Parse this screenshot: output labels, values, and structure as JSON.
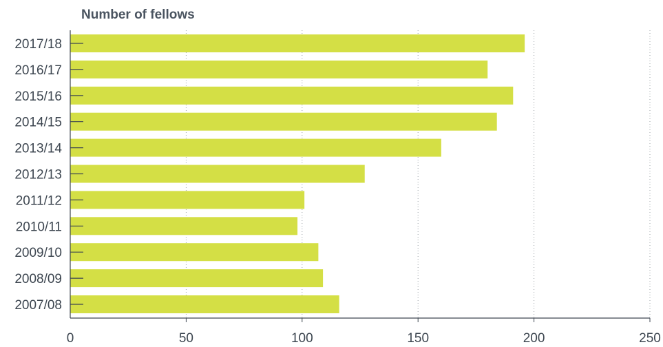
{
  "chart_data": {
    "type": "bar",
    "orientation": "horizontal",
    "title": "Number of fellows",
    "categories": [
      "2017/18",
      "2016/17",
      "2015/16",
      "2014/15",
      "2013/14",
      "2012/13",
      "2011/12",
      "2010/11",
      "2009/10",
      "2008/09",
      "2007/08"
    ],
    "values": [
      196,
      180,
      191,
      184,
      160,
      127,
      101,
      98,
      107,
      109,
      116
    ],
    "xlim": [
      0,
      250
    ],
    "xticks": [
      "0",
      "50",
      "100",
      "150",
      "200",
      "250"
    ],
    "grid": "vertical-dotted",
    "bar_color": "#d4df45"
  }
}
